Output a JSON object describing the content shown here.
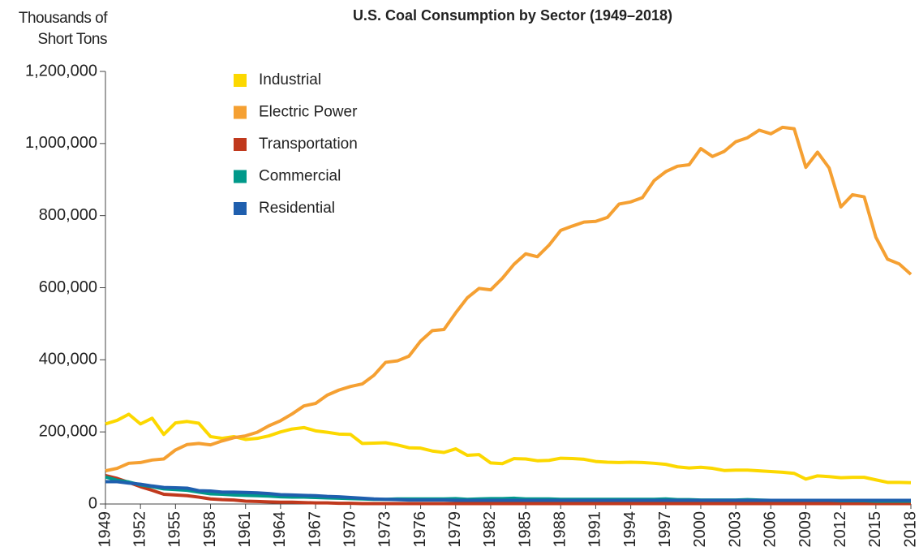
{
  "chart_data": {
    "type": "line",
    "title": "U.S. Coal Consumption by Sector (1949–2018)",
    "y_label": "Thousands of Short Tons",
    "x": [
      1949,
      1950,
      1951,
      1952,
      1953,
      1954,
      1955,
      1956,
      1957,
      1958,
      1959,
      1960,
      1961,
      1962,
      1963,
      1964,
      1965,
      1966,
      1967,
      1968,
      1969,
      1970,
      1971,
      1972,
      1973,
      1974,
      1975,
      1976,
      1977,
      1978,
      1979,
      1980,
      1981,
      1982,
      1983,
      1984,
      1985,
      1986,
      1987,
      1988,
      1989,
      1990,
      1991,
      1992,
      1993,
      1994,
      1995,
      1996,
      1997,
      1998,
      1999,
      2000,
      2001,
      2002,
      2003,
      2004,
      2005,
      2006,
      2007,
      2008,
      2009,
      2010,
      2011,
      2012,
      2013,
      2014,
      2015,
      2016,
      2017,
      2018
    ],
    "xlim": [
      1949,
      2018
    ],
    "xticks": [
      1949,
      1952,
      1955,
      1958,
      1961,
      1964,
      1967,
      1970,
      1973,
      1976,
      1979,
      1982,
      1985,
      1988,
      1991,
      1994,
      1997,
      2000,
      2003,
      2006,
      2009,
      2012,
      2015,
      2018
    ],
    "ylim": [
      0,
      1200000
    ],
    "yticks": [
      0,
      {
        "value": 200000,
        "label": "200,000"
      },
      {
        "value": 400000,
        "label": "400,000"
      },
      {
        "value": 600000,
        "label": "600,000"
      },
      {
        "value": 800000,
        "label": "800,000"
      },
      {
        "value": 1000000,
        "label": "1,000,000"
      },
      {
        "value": 1200000,
        "label": "1,200,000"
      }
    ],
    "grid": false,
    "legend": "upper left",
    "series": [
      {
        "name": "Industrial",
        "color": "#fcd800",
        "values": [
          222000,
          232000,
          249000,
          222000,
          238000,
          193000,
          225000,
          229000,
          224000,
          187000,
          182000,
          187000,
          179000,
          182000,
          189000,
          200000,
          208000,
          212000,
          203000,
          199000,
          194000,
          193000,
          168000,
          169000,
          170000,
          164000,
          156000,
          155000,
          147000,
          143000,
          153000,
          135000,
          137000,
          114000,
          112000,
          126000,
          125000,
          120000,
          121000,
          127000,
          126000,
          124000,
          118000,
          116000,
          115000,
          116000,
          115000,
          113000,
          110000,
          103000,
          100000,
          102000,
          99000,
          93000,
          94000,
          94000,
          92000,
          90000,
          88000,
          85000,
          69000,
          78000,
          76000,
          73000,
          74000,
          74000,
          67000,
          60000,
          60000,
          59000
        ]
      },
      {
        "name": "Electric Power",
        "color": "#f5a032",
        "values": [
          92000,
          99000,
          113000,
          115000,
          122000,
          125000,
          150000,
          165000,
          168000,
          164000,
          175000,
          184000,
          189000,
          199000,
          217000,
          231000,
          250000,
          272000,
          279000,
          302000,
          316000,
          326000,
          333000,
          357000,
          393000,
          397000,
          410000,
          452000,
          481000,
          484000,
          530000,
          572000,
          598000,
          594000,
          626000,
          665000,
          694000,
          686000,
          718000,
          759000,
          771000,
          782000,
          784000,
          795000,
          832000,
          838000,
          850000,
          897000,
          922000,
          937000,
          941000,
          986000,
          964000,
          978000,
          1005000,
          1016000,
          1037000,
          1027000,
          1045000,
          1041000,
          934000,
          976000,
          932000,
          824000,
          858000,
          852000,
          740000,
          679000,
          666000,
          637000
        ]
      },
      {
        "name": "Transportation",
        "color": "#c0391d",
        "values": [
          79000,
          71000,
          60000,
          48000,
          38000,
          27000,
          25000,
          23000,
          19000,
          14000,
          12000,
          11000,
          8000,
          7000,
          6000,
          5000,
          5000,
          4000,
          3000,
          3000,
          2000,
          2000,
          1000,
          1000,
          1000,
          1000,
          1000,
          1000,
          1000,
          1000,
          1000,
          1000,
          1000,
          1000,
          1000,
          1000,
          1000,
          1000,
          1000,
          1000,
          1000,
          1000,
          1000,
          1000,
          1000,
          1000,
          1000,
          1000,
          1000,
          1000,
          1000,
          1000,
          1000,
          1000,
          1000,
          1000,
          1000,
          1000,
          1000,
          1000,
          1000,
          1000,
          1000,
          1000,
          1000,
          1000,
          1000,
          1000,
          1000,
          1000
        ]
      },
      {
        "name": "Commercial",
        "color": "#00998a",
        "values": [
          75000,
          66000,
          61000,
          53000,
          48000,
          42000,
          40000,
          38000,
          33000,
          28000,
          27000,
          25000,
          24000,
          23000,
          22000,
          20000,
          19000,
          19000,
          18000,
          17000,
          16000,
          15000,
          14000,
          13000,
          13000,
          14000,
          14000,
          14000,
          14000,
          14000,
          15000,
          13000,
          14000,
          15000,
          15000,
          16000,
          14000,
          14000,
          14000,
          13000,
          13000,
          13000,
          13000,
          13000,
          13000,
          13000,
          13000,
          13000,
          14000,
          12000,
          12000,
          11000,
          11000,
          11000,
          11000,
          12000,
          11000,
          10000,
          10000,
          10000,
          10000,
          10000,
          10000,
          9000,
          9000,
          9000,
          8000,
          8000,
          8000,
          8000
        ]
      },
      {
        "name": "Residential",
        "color": "#1f5fae",
        "values": [
          62000,
          62000,
          58000,
          55000,
          50000,
          46000,
          45000,
          44000,
          37000,
          36000,
          33000,
          33000,
          32000,
          31000,
          29000,
          26000,
          25000,
          24000,
          23000,
          21000,
          20000,
          18000,
          16000,
          14000,
          13000,
          12000,
          11000,
          11000,
          11000,
          11000,
          10000,
          10000,
          10000,
          10000,
          10000,
          10000,
          10000,
          10000,
          10000,
          10000,
          10000,
          10000,
          10000,
          10000,
          10000,
          10000,
          10000,
          10000,
          10000,
          10000,
          10000,
          10000,
          10000,
          10000,
          10000,
          10000,
          10000,
          10000,
          10000,
          10000,
          10000,
          10000,
          10000,
          10000,
          10000,
          10000,
          10000,
          10000,
          10000,
          10000
        ]
      }
    ]
  }
}
